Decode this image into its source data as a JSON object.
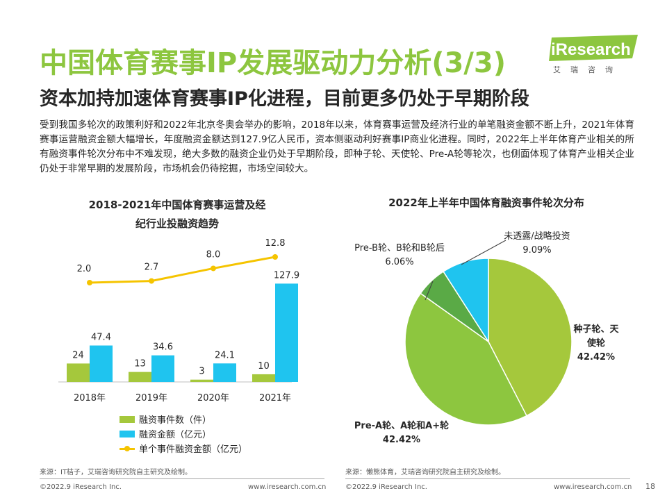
{
  "header": {
    "title": "中国体育赛事IP发展驱动力分析(3/3)",
    "subtitle": "资本加持加速体育赛事IP化进程，目前更多仍处于早期阶段",
    "logo_text": "iResearch",
    "logo_sub": "艾瑞咨询"
  },
  "intro": "受到我国多轮次的政策利好和2022年北京冬奥会举办的影响，2018年以来，体育赛事运营及经济行业的单笔融资金额不断上升，2021年体育赛事运营融资金额大幅增长，年度融资金额达到127.9亿人民币，资本侧驱动利好赛事IP商业化进程。同时，2022年上半年体育产业相关的所有融资事件轮次分布中不难发现，绝大多数的融资企业仍处于早期阶段，即种子轮、天使轮、Pre-A轮等轮次，也侧面体现了体育产业相关企业仍处于非常早期的发展阶段，市场机会仍待挖掘，市场空间较大。",
  "chart_data": [
    {
      "type": "bar",
      "title": "2018-2021年中国体育赛事运营及经纪行业投融资趋势",
      "title_lines": [
        "2018-2021年中国体育赛事运营及经",
        "纪行业投融资趋势"
      ],
      "categories": [
        "2018年",
        "2019年",
        "2020年",
        "2021年"
      ],
      "series": [
        {
          "name": "融资事件数（件）",
          "type": "bar",
          "color": "#a5c83c",
          "values": [
            24,
            13,
            3,
            10
          ],
          "labels": [
            "24",
            "13",
            "3",
            "10"
          ]
        },
        {
          "name": "融资金额（亿元）",
          "type": "bar",
          "color": "#1fc4ef",
          "values": [
            47.4,
            34.6,
            24.1,
            127.9
          ],
          "labels": [
            "47.4",
            "34.6",
            "24.1",
            "127.9"
          ]
        },
        {
          "name": "单个事件融资金额（亿元）",
          "type": "line",
          "color": "#f5c400",
          "values": [
            2.0,
            2.7,
            8.0,
            12.8
          ],
          "labels": [
            "2.0",
            "2.7",
            "8.0",
            "12.8"
          ]
        }
      ],
      "ylim": [
        0,
        140
      ],
      "line_ylim": [
        0,
        14
      ],
      "legend_position": "bottom",
      "grid": false,
      "source": "来源：IT桔子，艾瑞咨询研究院自主研究及绘制。"
    },
    {
      "type": "pie",
      "title": "2022年上半年中国体育融资事件轮次分布",
      "slices": [
        {
          "name": "种子轮、天使轮",
          "name_lines": [
            "种子轮、天",
            "使轮"
          ],
          "value": 42.42,
          "label": "42.42%",
          "color": "#a5c83c"
        },
        {
          "name": "Pre-A轮、A轮和A+轮",
          "name_lines": [
            "Pre-A轮、A轮和A+轮"
          ],
          "value": 42.42,
          "label": "42.42%",
          "color": "#8dc63f"
        },
        {
          "name": "Pre-B轮、B轮和B轮后",
          "name_lines": [
            "Pre-B轮、B轮和B轮后"
          ],
          "value": 6.06,
          "label": "6.06%",
          "color": "#5aaa46"
        },
        {
          "name": "未透露/战略投资",
          "name_lines": [
            "未透露/战略投资"
          ],
          "value": 9.09,
          "label": "9.09%",
          "color": "#1fc4ef"
        }
      ],
      "source": "来源：懒熊体育，艾瑞咨询研究院自主研究及绘制。"
    }
  ],
  "footer": {
    "left_copyright": "©2022.9 iResearch Inc.",
    "left_url": "www.iresearch.com.cn",
    "right_copyright": "©2022.9 iResearch Inc.",
    "right_url": "www.iresearch.com.cn",
    "page_number": "18"
  }
}
